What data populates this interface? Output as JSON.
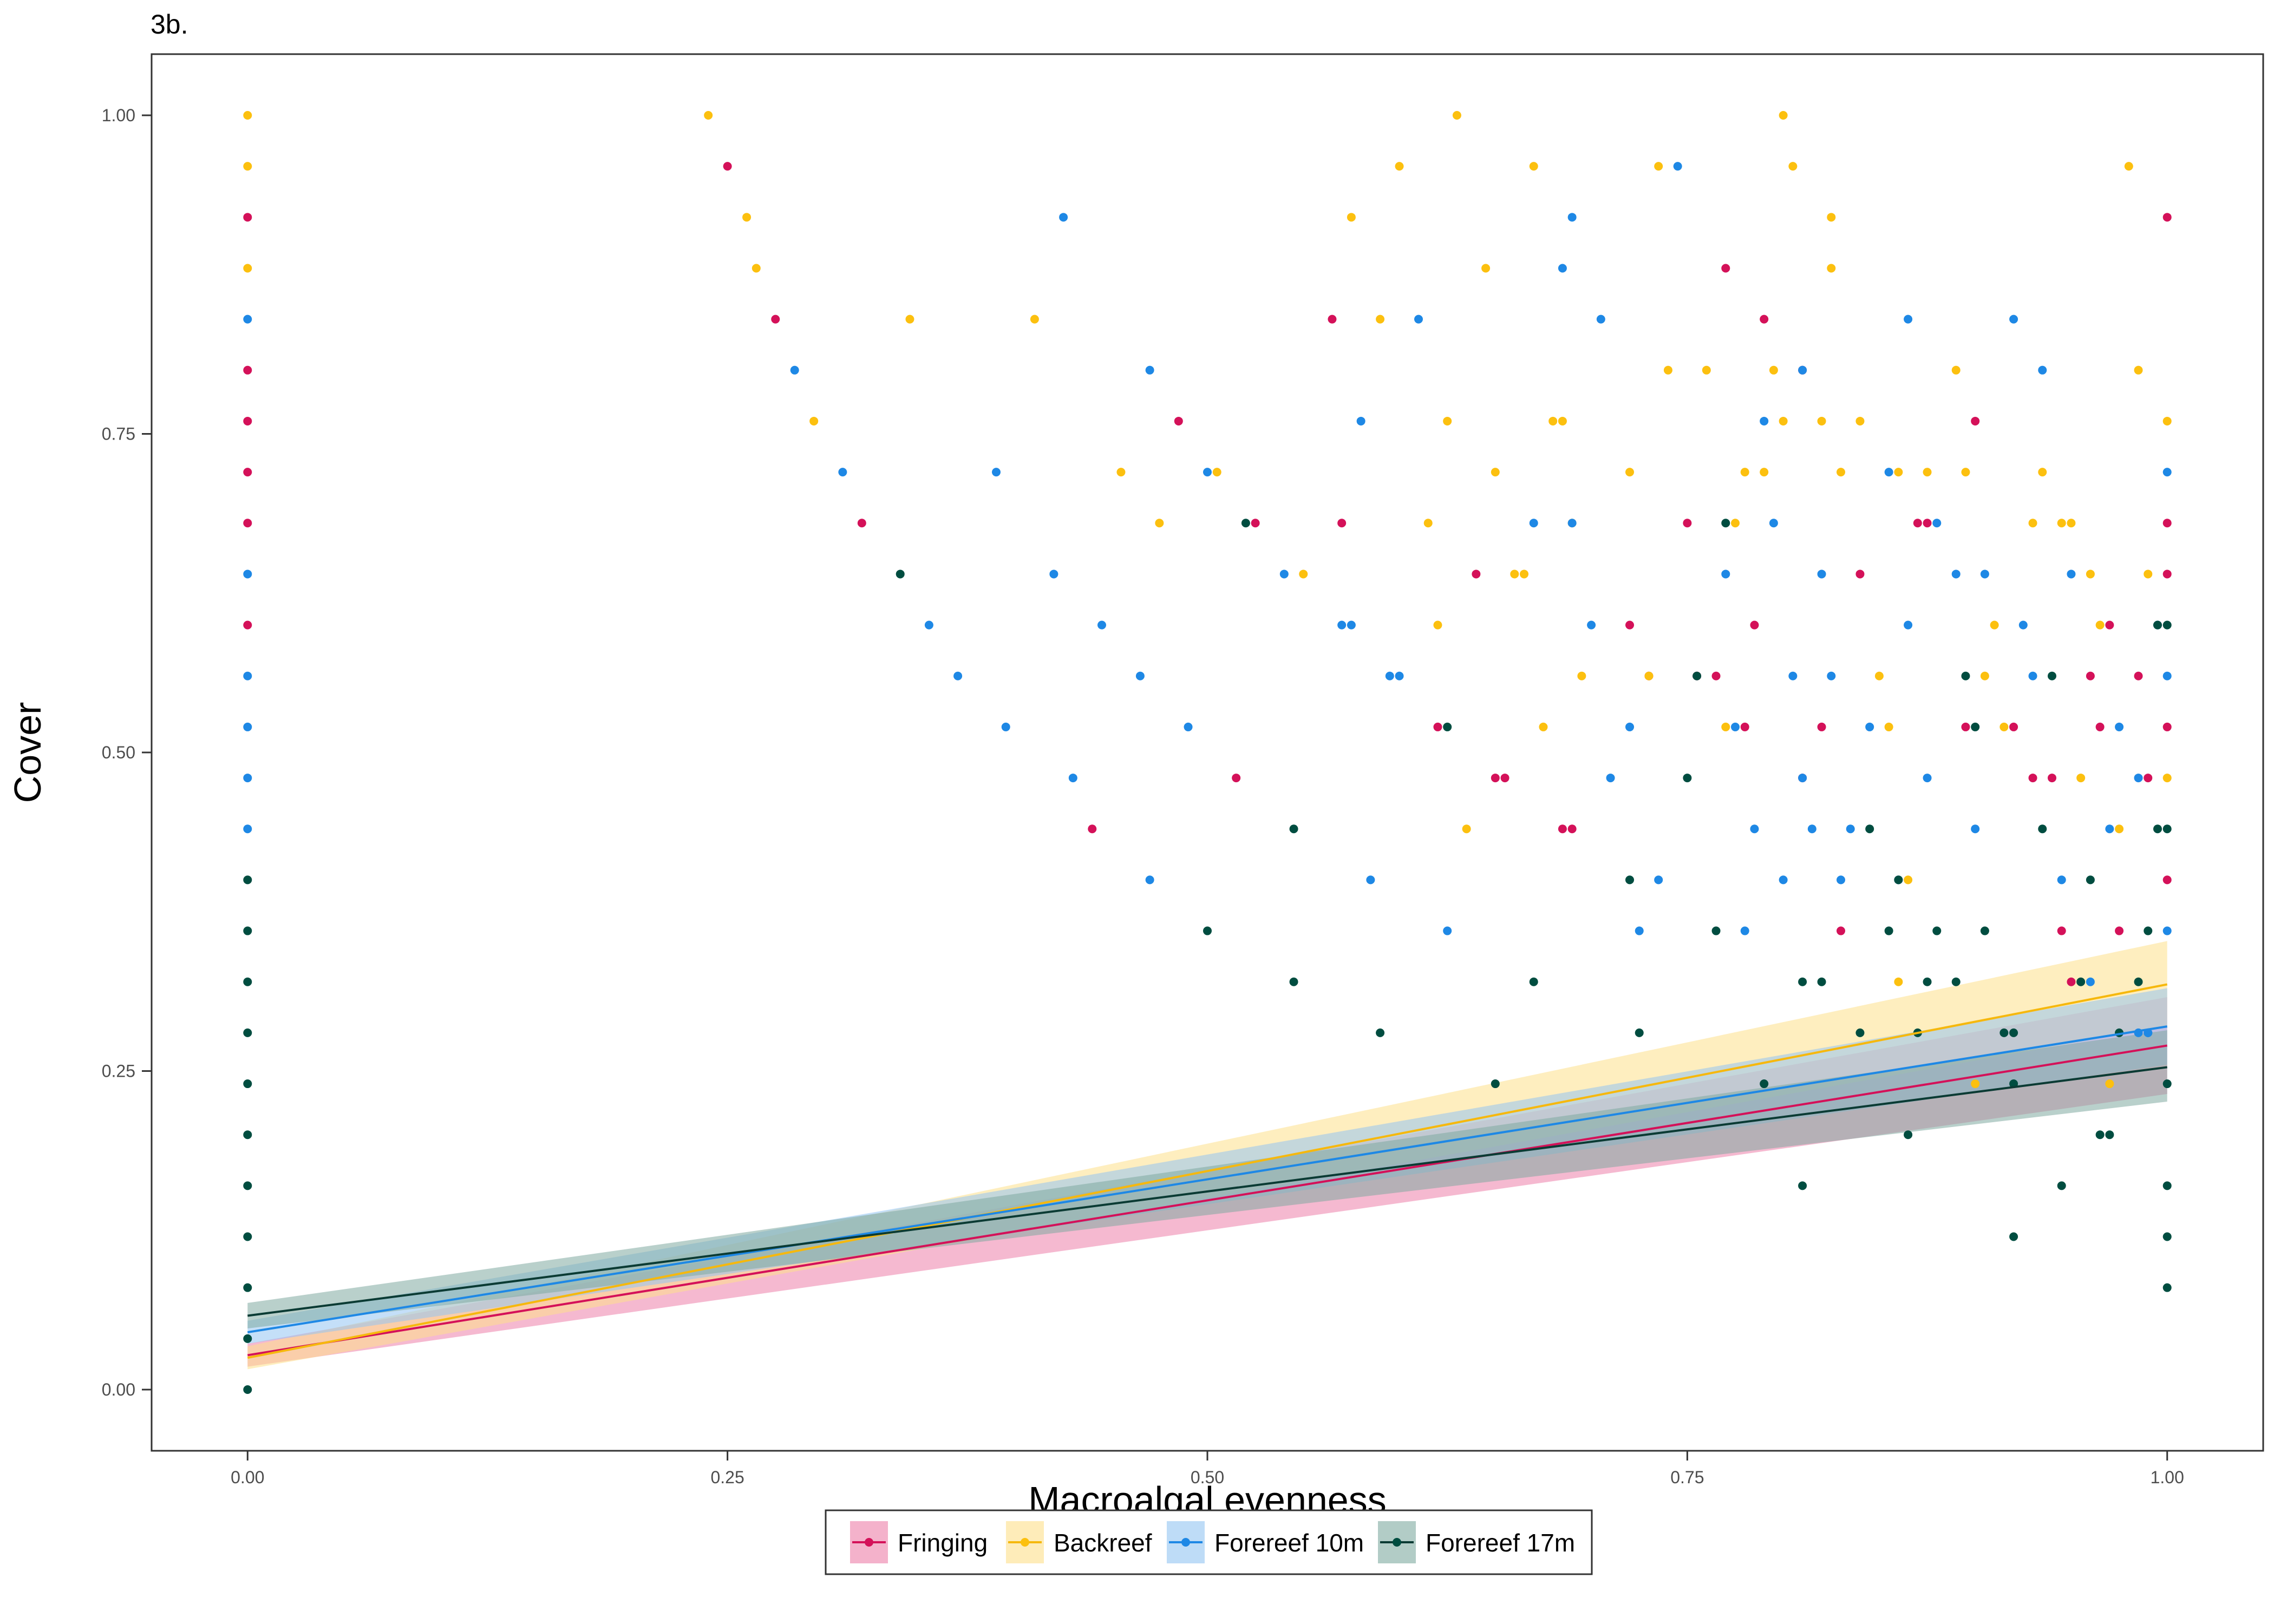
{
  "panel_label": "3b.",
  "chart_data": {
    "type": "scatter",
    "title": "",
    "xlabel": "Macroalgal evenness",
    "ylabel": "Cover",
    "xlim": [
      -0.05,
      1.05
    ],
    "ylim": [
      -0.048,
      1.048
    ],
    "x_ticks": [
      0,
      0.25,
      0.5,
      0.75,
      1
    ],
    "x_tick_labels": [
      "0.00",
      "0.25",
      "0.50",
      "0.75",
      "1.00"
    ],
    "y_ticks": [
      0,
      0.25,
      0.5,
      0.75,
      1
    ],
    "y_tick_labels": [
      "0.00",
      "0.25",
      "0.50",
      "0.75",
      "1.00"
    ],
    "grid": false,
    "legend_position": "bottom",
    "series": [
      {
        "name": "Fringing",
        "color": "#d41159",
        "fit_color": "#d41159",
        "ribbon_color": "#ec7fa9",
        "fit": {
          "x": [
            0,
            1
          ],
          "y": [
            0.027,
            0.27
          ],
          "lower": [
            0.018,
            0.232
          ],
          "upper": [
            0.036,
            0.308
          ]
        },
        "points": [
          [
            0,
            0.92
          ],
          [
            0,
            0.8
          ],
          [
            0,
            0.76
          ],
          [
            0,
            0.72
          ],
          [
            0,
            0.68
          ],
          [
            0,
            0.6
          ],
          [
            0.25,
            0.96
          ],
          [
            0.275,
            0.84
          ],
          [
            0.32,
            0.68
          ],
          [
            0.44,
            0.44
          ],
          [
            0.485,
            0.76
          ],
          [
            0.515,
            0.48
          ],
          [
            0.525,
            0.68
          ],
          [
            0.565,
            0.84
          ],
          [
            0.57,
            0.68
          ],
          [
            0.62,
            0.52
          ],
          [
            0.64,
            0.64
          ],
          [
            0.65,
            0.48
          ],
          [
            0.655,
            0.48
          ],
          [
            0.685,
            0.44
          ],
          [
            0.69,
            0.44
          ],
          [
            0.72,
            0.6
          ],
          [
            0.73,
            0.56
          ],
          [
            0.75,
            0.68
          ],
          [
            0.755,
            0.56
          ],
          [
            0.765,
            0.56
          ],
          [
            0.77,
            0.88
          ],
          [
            0.78,
            0.52
          ],
          [
            0.785,
            0.6
          ],
          [
            0.79,
            0.84
          ],
          [
            0.81,
            0.8
          ],
          [
            0.81,
            0.48
          ],
          [
            0.82,
            0.52
          ],
          [
            0.83,
            0.36
          ],
          [
            0.84,
            0.64
          ],
          [
            0.87,
            0.68
          ],
          [
            0.875,
            0.68
          ],
          [
            0.895,
            0.52
          ],
          [
            0.9,
            0.76
          ],
          [
            0.92,
            0.52
          ],
          [
            0.94,
            0.48
          ],
          [
            0.945,
            0.36
          ],
          [
            0.95,
            0.32
          ],
          [
            0.96,
            0.56
          ],
          [
            0.965,
            0.52
          ],
          [
            0.975,
            0.36
          ],
          [
            0.985,
            0.56
          ],
          [
            0.99,
            0.48
          ],
          [
            1.0,
            0.92
          ],
          [
            1.0,
            0.68
          ],
          [
            1.0,
            0.64
          ],
          [
            1.0,
            0.52
          ],
          [
            1.0,
            0.4
          ],
          [
            0.93,
            0.48
          ],
          [
            0.97,
            0.6
          ]
        ]
      },
      {
        "name": "Backreef",
        "color": "#fcc00f",
        "fit_color": "#f6b80d",
        "ribbon_color": "#fde08a",
        "fit": {
          "x": [
            0,
            1
          ],
          "y": [
            0.025,
            0.318
          ],
          "lower": [
            0.016,
            0.285
          ],
          "upper": [
            0.034,
            0.352
          ]
        },
        "points": [
          [
            0,
            1.0
          ],
          [
            0,
            0.96
          ],
          [
            0,
            0.88
          ],
          [
            0.24,
            1.0
          ],
          [
            0.26,
            0.92
          ],
          [
            0.265,
            0.88
          ],
          [
            0.295,
            0.76
          ],
          [
            0.345,
            0.84
          ],
          [
            0.41,
            0.84
          ],
          [
            0.455,
            0.72
          ],
          [
            0.475,
            0.68
          ],
          [
            0.505,
            0.72
          ],
          [
            0.55,
            0.64
          ],
          [
            0.575,
            0.92
          ],
          [
            0.59,
            0.84
          ],
          [
            0.6,
            0.96
          ],
          [
            0.615,
            0.68
          ],
          [
            0.62,
            0.6
          ],
          [
            0.625,
            0.76
          ],
          [
            0.63,
            1.0
          ],
          [
            0.635,
            0.44
          ],
          [
            0.645,
            0.88
          ],
          [
            0.65,
            0.72
          ],
          [
            0.66,
            0.64
          ],
          [
            0.665,
            0.64
          ],
          [
            0.67,
            0.96
          ],
          [
            0.675,
            0.52
          ],
          [
            0.68,
            0.76
          ],
          [
            0.685,
            0.76
          ],
          [
            0.69,
            0.68
          ],
          [
            0.695,
            0.56
          ],
          [
            0.72,
            0.72
          ],
          [
            0.73,
            0.56
          ],
          [
            0.735,
            0.96
          ],
          [
            0.74,
            0.8
          ],
          [
            0.76,
            0.8
          ],
          [
            0.77,
            0.52
          ],
          [
            0.775,
            0.68
          ],
          [
            0.78,
            0.72
          ],
          [
            0.79,
            0.72
          ],
          [
            0.795,
            0.8
          ],
          [
            0.8,
            0.76
          ],
          [
            0.8,
            1.0
          ],
          [
            0.805,
            0.96
          ],
          [
            0.82,
            0.76
          ],
          [
            0.825,
            0.92
          ],
          [
            0.825,
            0.88
          ],
          [
            0.83,
            0.72
          ],
          [
            0.84,
            0.76
          ],
          [
            0.85,
            0.56
          ],
          [
            0.855,
            0.52
          ],
          [
            0.86,
            0.72
          ],
          [
            0.865,
            0.4
          ],
          [
            0.875,
            0.72
          ],
          [
            0.89,
            0.8
          ],
          [
            0.895,
            0.72
          ],
          [
            0.905,
            0.56
          ],
          [
            0.91,
            0.6
          ],
          [
            0.915,
            0.52
          ],
          [
            0.93,
            0.68
          ],
          [
            0.935,
            0.72
          ],
          [
            0.945,
            0.68
          ],
          [
            0.95,
            0.68
          ],
          [
            0.955,
            0.48
          ],
          [
            0.96,
            0.64
          ],
          [
            0.965,
            0.6
          ],
          [
            0.975,
            0.44
          ],
          [
            0.98,
            0.96
          ],
          [
            0.985,
            0.8
          ],
          [
            0.99,
            0.64
          ],
          [
            1.0,
            0.76
          ],
          [
            1.0,
            0.48
          ],
          [
            0.97,
            0.24
          ],
          [
            0.9,
            0.24
          ],
          [
            0.86,
            0.32
          ]
        ]
      },
      {
        "name": "Forereef 10m",
        "color": "#1e88e5",
        "fit_color": "#1e88e5",
        "ribbon_color": "#93c4f2",
        "fit": {
          "x": [
            0,
            1
          ],
          "y": [
            0.045,
            0.285
          ],
          "lower": [
            0.036,
            0.255
          ],
          "upper": [
            0.054,
            0.315
          ]
        },
        "points": [
          [
            0,
            0.84
          ],
          [
            0,
            0.64
          ],
          [
            0,
            0.56
          ],
          [
            0,
            0.52
          ],
          [
            0,
            0.48
          ],
          [
            0,
            0.44
          ],
          [
            0.285,
            0.8
          ],
          [
            0.31,
            0.72
          ],
          [
            0.355,
            0.6
          ],
          [
            0.37,
            0.56
          ],
          [
            0.39,
            0.72
          ],
          [
            0.395,
            0.52
          ],
          [
            0.42,
            0.64
          ],
          [
            0.425,
            0.92
          ],
          [
            0.43,
            0.48
          ],
          [
            0.445,
            0.6
          ],
          [
            0.465,
            0.56
          ],
          [
            0.47,
            0.8
          ],
          [
            0.47,
            0.4
          ],
          [
            0.49,
            0.52
          ],
          [
            0.5,
            0.72
          ],
          [
            0.54,
            0.64
          ],
          [
            0.57,
            0.6
          ],
          [
            0.575,
            0.6
          ],
          [
            0.58,
            0.76
          ],
          [
            0.585,
            0.4
          ],
          [
            0.595,
            0.56
          ],
          [
            0.6,
            0.56
          ],
          [
            0.61,
            0.84
          ],
          [
            0.625,
            0.36
          ],
          [
            0.67,
            0.68
          ],
          [
            0.685,
            0.88
          ],
          [
            0.69,
            0.92
          ],
          [
            0.69,
            0.68
          ],
          [
            0.7,
            0.6
          ],
          [
            0.705,
            0.84
          ],
          [
            0.71,
            0.48
          ],
          [
            0.72,
            0.52
          ],
          [
            0.725,
            0.36
          ],
          [
            0.735,
            0.4
          ],
          [
            0.745,
            0.96
          ],
          [
            0.77,
            0.64
          ],
          [
            0.775,
            0.52
          ],
          [
            0.78,
            0.36
          ],
          [
            0.785,
            0.44
          ],
          [
            0.79,
            0.76
          ],
          [
            0.795,
            0.68
          ],
          [
            0.8,
            0.4
          ],
          [
            0.805,
            0.56
          ],
          [
            0.81,
            0.8
          ],
          [
            0.81,
            0.48
          ],
          [
            0.815,
            0.44
          ],
          [
            0.82,
            0.64
          ],
          [
            0.825,
            0.56
          ],
          [
            0.83,
            0.4
          ],
          [
            0.835,
            0.44
          ],
          [
            0.845,
            0.52
          ],
          [
            0.855,
            0.72
          ],
          [
            0.86,
            0.4
          ],
          [
            0.865,
            0.84
          ],
          [
            0.865,
            0.6
          ],
          [
            0.875,
            0.48
          ],
          [
            0.88,
            0.68
          ],
          [
            0.89,
            0.64
          ],
          [
            0.9,
            0.44
          ],
          [
            0.905,
            0.64
          ],
          [
            0.92,
            0.84
          ],
          [
            0.925,
            0.6
          ],
          [
            0.93,
            0.56
          ],
          [
            0.935,
            0.8
          ],
          [
            0.945,
            0.4
          ],
          [
            0.95,
            0.64
          ],
          [
            0.96,
            0.32
          ],
          [
            0.97,
            0.44
          ],
          [
            0.975,
            0.52
          ],
          [
            0.985,
            0.48
          ],
          [
            0.99,
            0.28
          ],
          [
            0.995,
            0.6
          ],
          [
            1.0,
            0.72
          ],
          [
            1.0,
            0.56
          ],
          [
            1.0,
            0.36
          ],
          [
            0.99,
            0.28
          ],
          [
            0.985,
            0.28
          ]
        ]
      },
      {
        "name": "Forereef 17m",
        "color": "#004d40",
        "fit_color": "#0b3b34",
        "ribbon_color": "#7faaa0",
        "fit": {
          "x": [
            0,
            1
          ],
          "y": [
            0.058,
            0.253
          ],
          "lower": [
            0.048,
            0.226
          ],
          "upper": [
            0.068,
            0.282
          ]
        },
        "points": [
          [
            0,
            0.4
          ],
          [
            0,
            0.36
          ],
          [
            0,
            0.32
          ],
          [
            0,
            0.28
          ],
          [
            0,
            0.24
          ],
          [
            0,
            0.2
          ],
          [
            0,
            0.16
          ],
          [
            0,
            0.12
          ],
          [
            0,
            0.08
          ],
          [
            0,
            0.04
          ],
          [
            0,
            0.0
          ],
          [
            0.34,
            0.64
          ],
          [
            0.5,
            0.36
          ],
          [
            0.52,
            0.68
          ],
          [
            0.545,
            0.32
          ],
          [
            0.545,
            0.44
          ],
          [
            0.59,
            0.28
          ],
          [
            0.625,
            0.52
          ],
          [
            0.65,
            0.24
          ],
          [
            0.67,
            0.32
          ],
          [
            0.72,
            0.4
          ],
          [
            0.725,
            0.28
          ],
          [
            0.75,
            0.48
          ],
          [
            0.755,
            0.56
          ],
          [
            0.765,
            0.36
          ],
          [
            0.77,
            0.68
          ],
          [
            0.79,
            0.24
          ],
          [
            0.81,
            0.32
          ],
          [
            0.81,
            0.16
          ],
          [
            0.82,
            0.32
          ],
          [
            0.84,
            0.28
          ],
          [
            0.845,
            0.44
          ],
          [
            0.855,
            0.36
          ],
          [
            0.86,
            0.4
          ],
          [
            0.865,
            0.2
          ],
          [
            0.87,
            0.28
          ],
          [
            0.875,
            0.32
          ],
          [
            0.88,
            0.36
          ],
          [
            0.89,
            0.32
          ],
          [
            0.895,
            0.56
          ],
          [
            0.9,
            0.52
          ],
          [
            0.905,
            0.36
          ],
          [
            0.915,
            0.28
          ],
          [
            0.92,
            0.12
          ],
          [
            0.92,
            0.24
          ],
          [
            0.935,
            0.44
          ],
          [
            0.94,
            0.56
          ],
          [
            0.945,
            0.16
          ],
          [
            0.955,
            0.32
          ],
          [
            0.96,
            0.4
          ],
          [
            0.965,
            0.2
          ],
          [
            0.97,
            0.2
          ],
          [
            0.975,
            0.28
          ],
          [
            0.985,
            0.32
          ],
          [
            0.99,
            0.36
          ],
          [
            0.995,
            0.6
          ],
          [
            0.995,
            0.44
          ],
          [
            1.0,
            0.6
          ],
          [
            1.0,
            0.44
          ],
          [
            1.0,
            0.24
          ],
          [
            1.0,
            0.16
          ],
          [
            1.0,
            0.12
          ],
          [
            1.0,
            0.08
          ],
          [
            0.92,
            0.28
          ]
        ]
      }
    ]
  }
}
